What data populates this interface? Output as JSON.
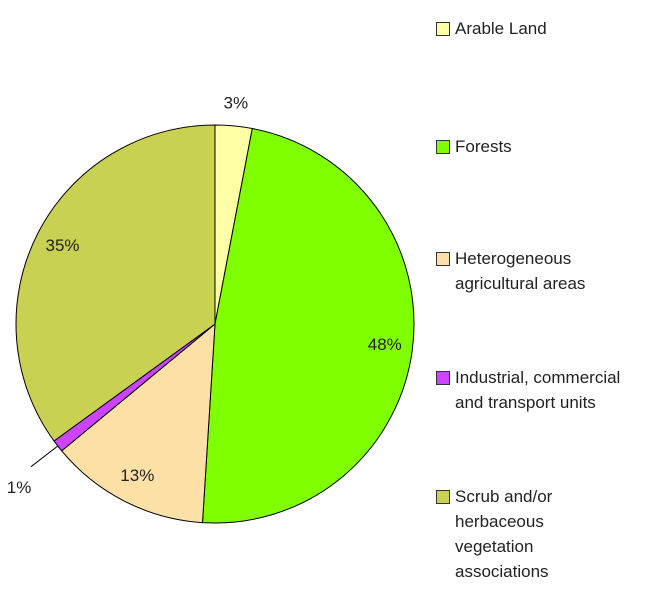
{
  "chart_data": {
    "type": "pie",
    "categories": [
      "Arable Land",
      "Forests",
      "Heterogeneous agricultural areas",
      "Industrial, commercial and transport units",
      "Scrub and/or herbaceous vegetation associations"
    ],
    "values": [
      3,
      48,
      13,
      1,
      35
    ],
    "value_labels": [
      "3%",
      "48%",
      "13%",
      "1%",
      "35%"
    ],
    "colors": [
      "#ffffa6",
      "#80ff00",
      "#fde0a6",
      "#cc44ff",
      "#c8d151"
    ],
    "legend": "right"
  }
}
